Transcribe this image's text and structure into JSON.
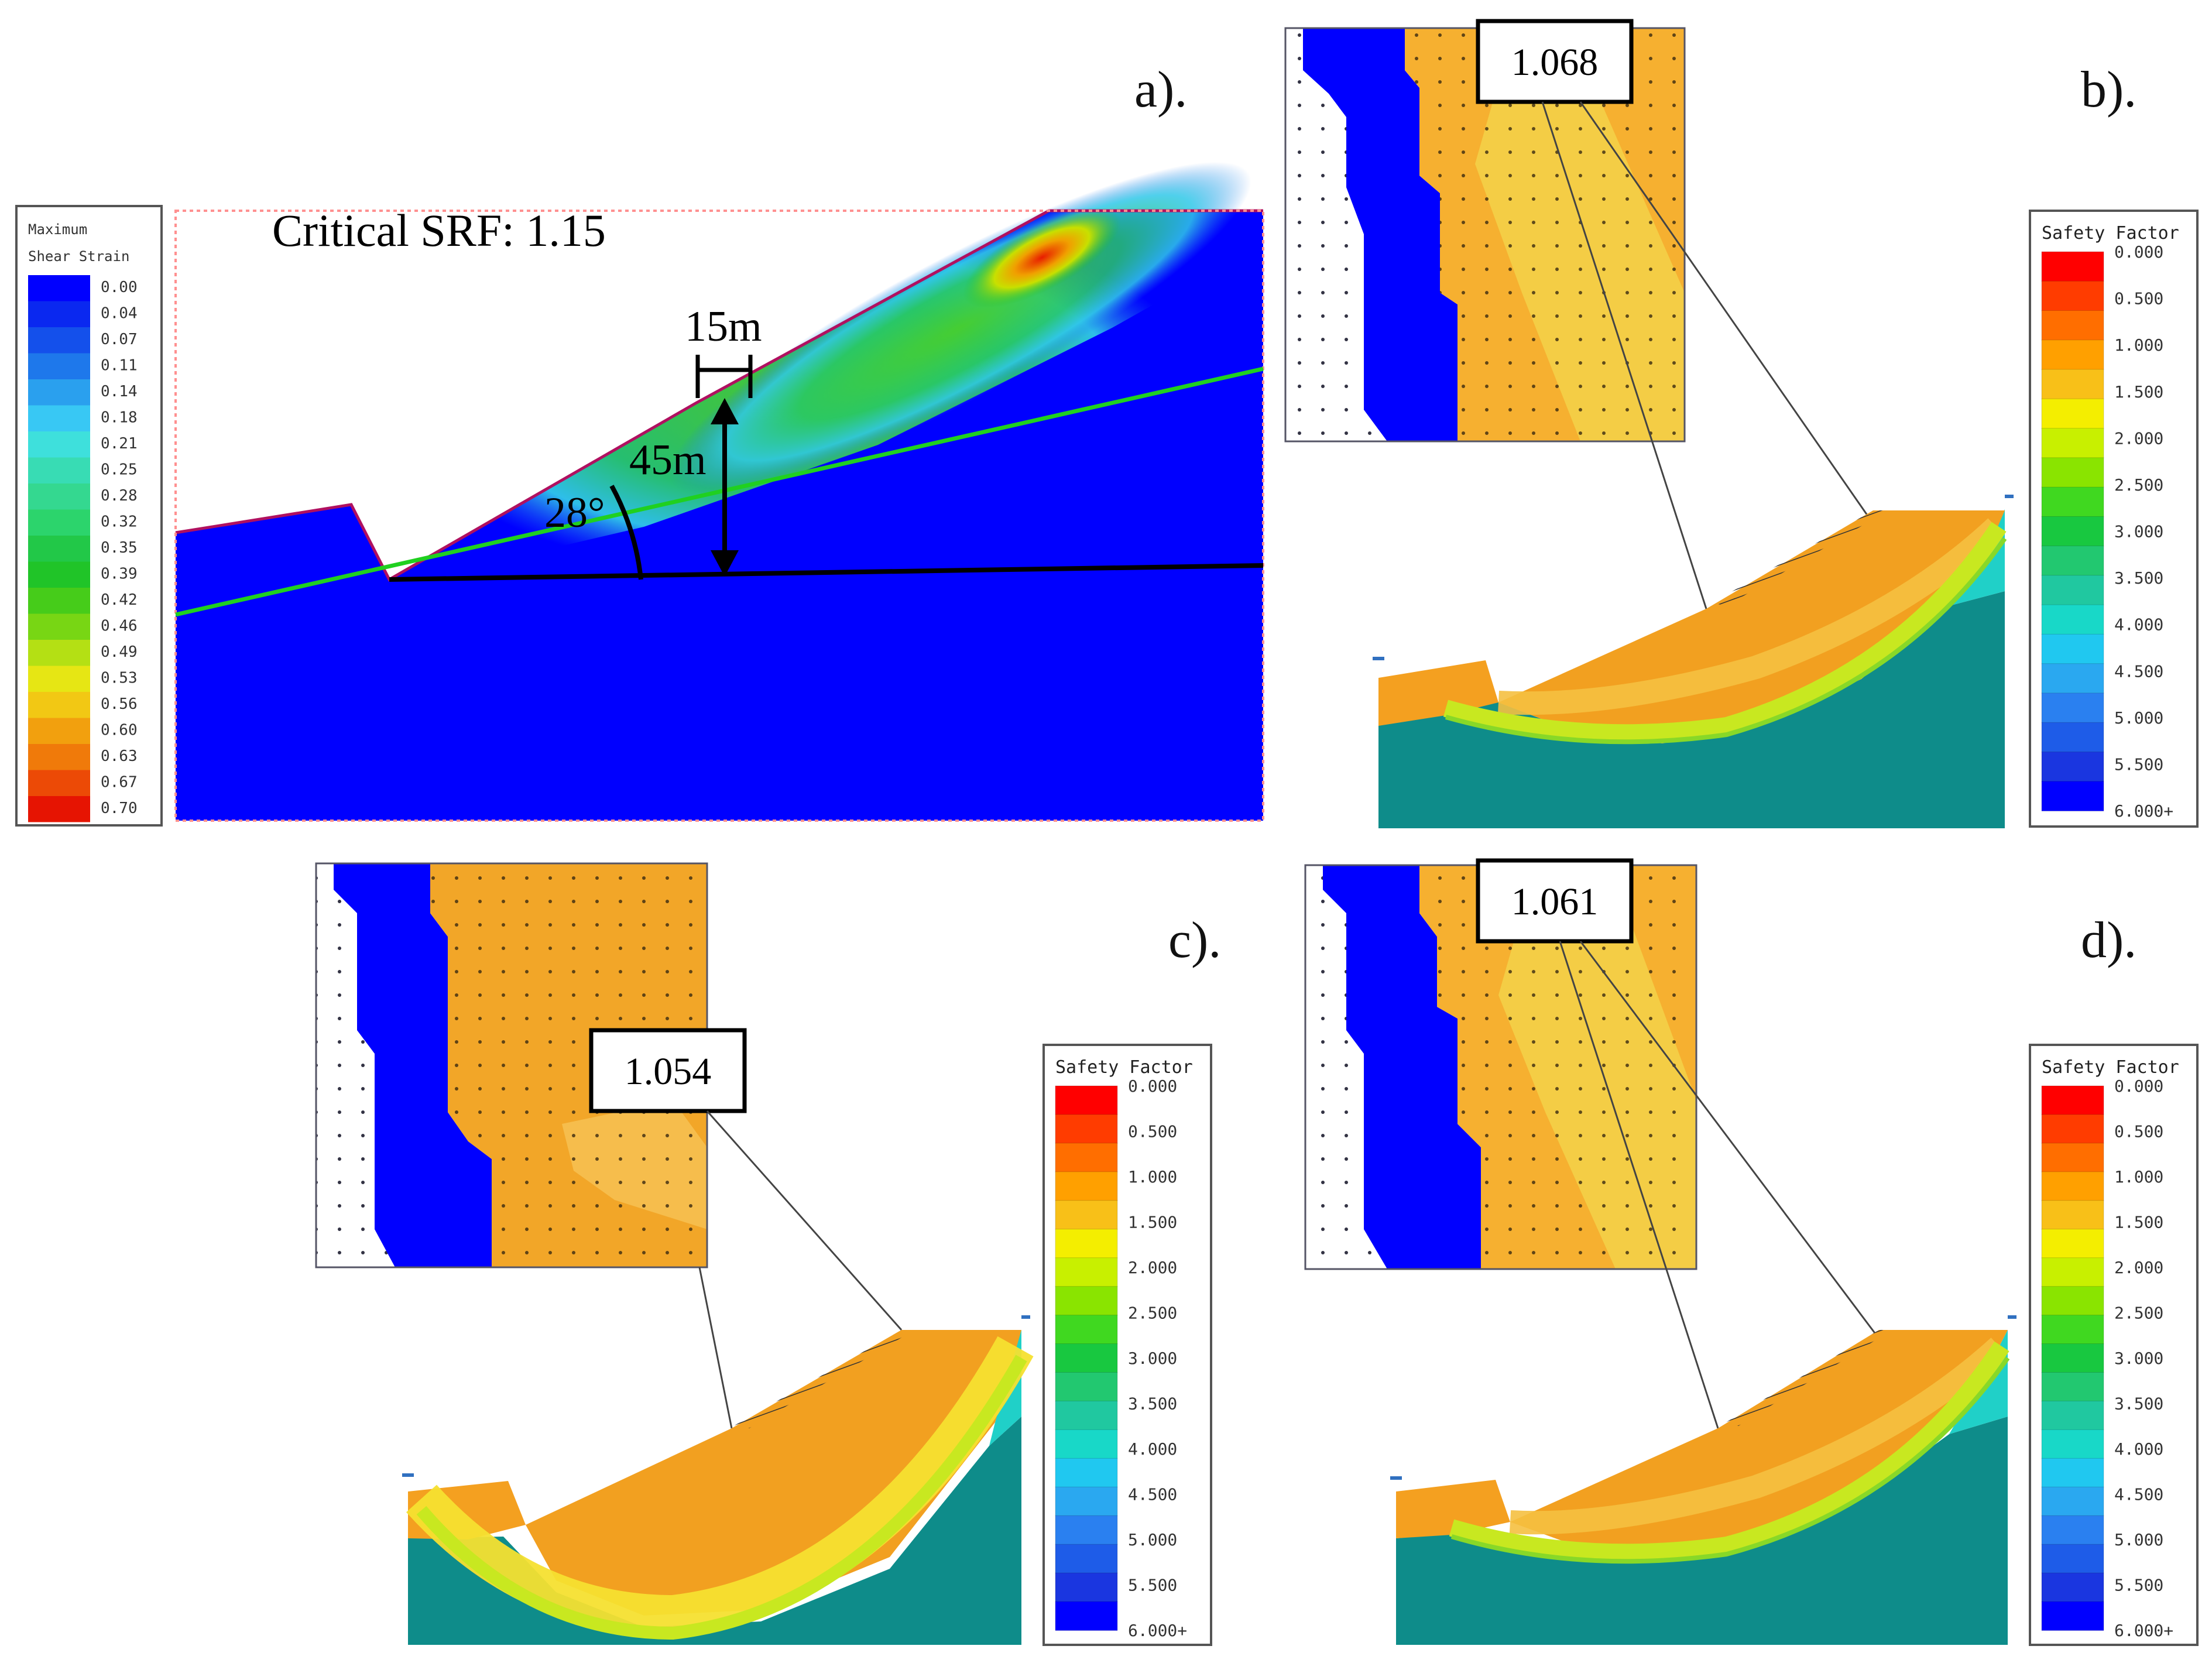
{
  "panels": {
    "a": {
      "label": "a).",
      "legend_title_1": "Maximum",
      "legend_title_2": "Shear Strain",
      "legend_values": [
        "0.00",
        "0.04",
        "0.07",
        "0.11",
        "0.14",
        "0.18",
        "0.21",
        "0.25",
        "0.28",
        "0.32",
        "0.35",
        "0.39",
        "0.42",
        "0.46",
        "0.49",
        "0.53",
        "0.56",
        "0.60",
        "0.63",
        "0.67",
        "0.70"
      ],
      "legend_colors": [
        "#0000ff",
        "#0a28f0",
        "#1450eb",
        "#1e78eb",
        "#2aa0ee",
        "#38c8f4",
        "#3ee0dc",
        "#38dcb4",
        "#34d890",
        "#2cd46c",
        "#22c848",
        "#20c428",
        "#46cc1a",
        "#78d614",
        "#b4e014",
        "#e6e614",
        "#f2c814",
        "#f2a00e",
        "#f07a0a",
        "#ec4a06",
        "#e61402"
      ],
      "srf_text": "Critical SRF: 1.15",
      "dim_width": "15m",
      "dim_height": "45m",
      "angle": "28°"
    },
    "b": {
      "label": "b).",
      "factor": "1.068"
    },
    "c": {
      "label": "c).",
      "factor": "1.054"
    },
    "d": {
      "label": "d).",
      "factor": "1.061"
    },
    "sf_legend": {
      "title": "Safety Factor",
      "values": [
        "0.000",
        "0.500",
        "1.000",
        "1.500",
        "2.000",
        "2.500",
        "3.000",
        "3.500",
        "4.000",
        "4.500",
        "5.000",
        "5.500",
        "6.000+"
      ],
      "colors": [
        "#ff0000",
        "#ff3c00",
        "#ff6e00",
        "#ffa000",
        "#f8c018",
        "#f4ee00",
        "#c8f000",
        "#8ae400",
        "#40d820",
        "#18c840",
        "#22c870",
        "#20c8a0",
        "#18d8c8",
        "#20c8f0",
        "#2aa8f0",
        "#2a80f0",
        "#1e5ce8",
        "#1a36e0",
        "#0000ff"
      ],
      "teal": "#0e8c8a"
    }
  }
}
